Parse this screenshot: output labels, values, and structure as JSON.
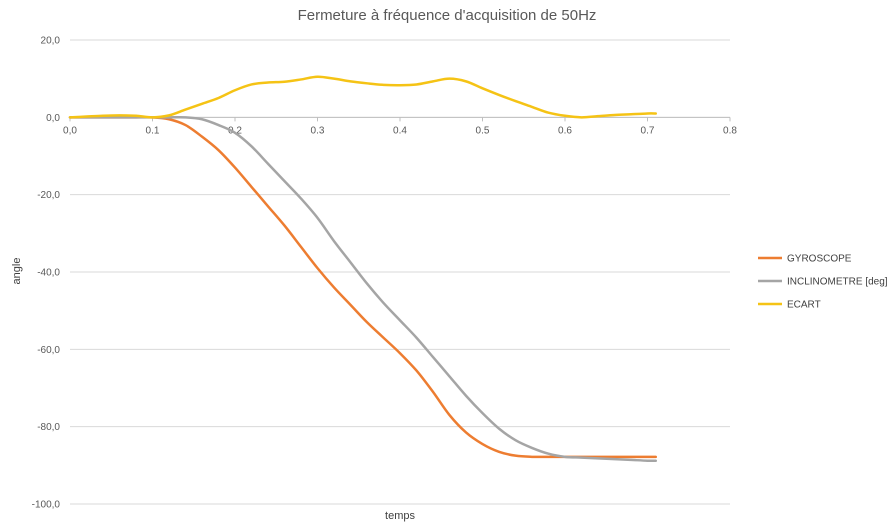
{
  "chart_data": {
    "type": "line",
    "title": "Fermeture à fréquence d'acquisition de 50Hz",
    "xlabel": "temps",
    "ylabel": "angle",
    "xlim": [
      0,
      0.8
    ],
    "ylim": [
      -100,
      20
    ],
    "x_ticks": [
      0,
      0.1,
      0.2,
      0.3,
      0.4,
      0.5,
      0.6,
      0.7,
      0.8
    ],
    "x_tick_labels": [
      "0,0",
      "0.1",
      "0.2",
      "0.3",
      "0.4",
      "0.5",
      "0.6",
      "0.7",
      "0.8"
    ],
    "y_ticks": [
      20,
      0,
      -20,
      -40,
      -60,
      -80,
      -100
    ],
    "y_tick_labels": [
      "20,0",
      "0,0",
      "-20,0",
      "-40,0",
      "-60,0",
      "-80,0",
      "-100,0"
    ],
    "grid": "horizontal",
    "legend_position": "right",
    "series": [
      {
        "name": "GYROSCOPE",
        "color": "#ED7D31",
        "x": [
          0,
          0.02,
          0.04,
          0.06,
          0.08,
          0.1,
          0.12,
          0.14,
          0.16,
          0.18,
          0.2,
          0.22,
          0.24,
          0.26,
          0.28,
          0.3,
          0.32,
          0.34,
          0.36,
          0.38,
          0.4,
          0.42,
          0.44,
          0.46,
          0.48,
          0.5,
          0.52,
          0.54,
          0.56,
          0.58,
          0.6,
          0.62,
          0.64,
          0.66,
          0.68,
          0.7,
          0.71
        ],
        "y": [
          0,
          0,
          0,
          0,
          0,
          0,
          -0.5,
          -2,
          -5,
          -8.5,
          -13,
          -18,
          -23,
          -28,
          -33.5,
          -39,
          -44,
          -48.5,
          -53,
          -57,
          -61,
          -65.5,
          -71,
          -77,
          -81.5,
          -84.5,
          -86.5,
          -87.5,
          -87.8,
          -87.8,
          -87.8,
          -87.8,
          -87.8,
          -87.8,
          -87.8,
          -87.8,
          -87.8
        ]
      },
      {
        "name": "INCLINOMETRE [deg]",
        "color": "#A5A5A5",
        "x": [
          0,
          0.02,
          0.04,
          0.06,
          0.08,
          0.1,
          0.12,
          0.14,
          0.16,
          0.18,
          0.2,
          0.22,
          0.24,
          0.26,
          0.28,
          0.3,
          0.32,
          0.34,
          0.36,
          0.38,
          0.4,
          0.42,
          0.44,
          0.46,
          0.48,
          0.5,
          0.52,
          0.54,
          0.56,
          0.58,
          0.6,
          0.62,
          0.64,
          0.66,
          0.68,
          0.7,
          0.71
        ],
        "y": [
          0,
          0,
          0,
          0,
          0,
          0,
          0,
          0,
          -0.5,
          -2,
          -4,
          -7.5,
          -12,
          -16.5,
          -21,
          -26,
          -32,
          -37.5,
          -43,
          -48,
          -52.5,
          -57,
          -62,
          -67,
          -72,
          -76.5,
          -80.5,
          -83.5,
          -85.5,
          -87,
          -87.8,
          -88,
          -88.2,
          -88.4,
          -88.6,
          -88.8,
          -88.8
        ]
      },
      {
        "name": "ECART",
        "color": "#F5C315",
        "x": [
          0,
          0.02,
          0.04,
          0.06,
          0.08,
          0.1,
          0.12,
          0.14,
          0.16,
          0.18,
          0.2,
          0.22,
          0.24,
          0.26,
          0.28,
          0.3,
          0.32,
          0.34,
          0.36,
          0.38,
          0.4,
          0.42,
          0.44,
          0.46,
          0.48,
          0.5,
          0.52,
          0.54,
          0.56,
          0.58,
          0.6,
          0.62,
          0.64,
          0.66,
          0.68,
          0.7,
          0.71
        ],
        "y": [
          0,
          0.2,
          0.4,
          0.5,
          0.4,
          0,
          0.5,
          2,
          3.5,
          5,
          7,
          8.5,
          9,
          9.2,
          9.8,
          10.5,
          10,
          9.3,
          8.8,
          8.4,
          8.3,
          8.5,
          9.3,
          10,
          9.3,
          7.5,
          5.8,
          4.2,
          2.7,
          1.2,
          0.4,
          0,
          0.3,
          0.6,
          0.8,
          1,
          1
        ]
      }
    ]
  }
}
